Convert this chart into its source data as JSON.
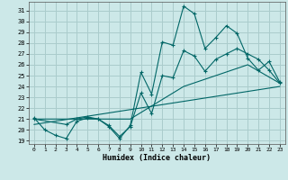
{
  "xlabel": "Humidex (Indice chaleur)",
  "background_color": "#cce8e8",
  "grid_color": "#aacccc",
  "line_color": "#006666",
  "xlim": [
    -0.5,
    23.5
  ],
  "ylim": [
    18.7,
    31.8
  ],
  "yticks": [
    19,
    20,
    21,
    22,
    23,
    24,
    25,
    26,
    27,
    28,
    29,
    30,
    31
  ],
  "xticks": [
    0,
    1,
    2,
    3,
    4,
    5,
    6,
    7,
    8,
    9,
    10,
    11,
    12,
    13,
    14,
    15,
    16,
    17,
    18,
    19,
    20,
    21,
    22,
    23
  ],
  "series": [
    {
      "x": [
        0,
        1,
        2,
        3,
        4,
        5,
        6,
        7,
        8,
        9,
        10,
        11,
        12,
        13,
        14,
        15,
        16,
        17,
        18,
        19,
        20,
        21,
        22,
        23
      ],
      "y": [
        21.1,
        20.0,
        19.5,
        19.2,
        20.8,
        21.1,
        21.0,
        20.3,
        19.2,
        20.4,
        25.3,
        23.3,
        28.1,
        27.8,
        31.4,
        30.7,
        27.5,
        28.5,
        29.6,
        28.9,
        26.6,
        25.5,
        26.3,
        24.4
      ],
      "marker": true
    },
    {
      "x": [
        0,
        3,
        4,
        5,
        6,
        7,
        8,
        9,
        10,
        11,
        12,
        13,
        14,
        15,
        16,
        17,
        18,
        19,
        20,
        21,
        22,
        23
      ],
      "y": [
        21.0,
        20.5,
        21.0,
        21.2,
        21.0,
        20.4,
        19.4,
        20.3,
        23.4,
        21.5,
        25.0,
        24.8,
        27.3,
        26.8,
        25.4,
        26.5,
        27.0,
        27.5,
        27.0,
        26.5,
        25.5,
        24.3
      ],
      "marker": true
    },
    {
      "x": [
        0,
        23
      ],
      "y": [
        20.5,
        24.0
      ],
      "marker": false
    },
    {
      "x": [
        0,
        9,
        14,
        20,
        23
      ],
      "y": [
        21.0,
        21.0,
        24.0,
        26.0,
        24.3
      ],
      "marker": false
    }
  ]
}
